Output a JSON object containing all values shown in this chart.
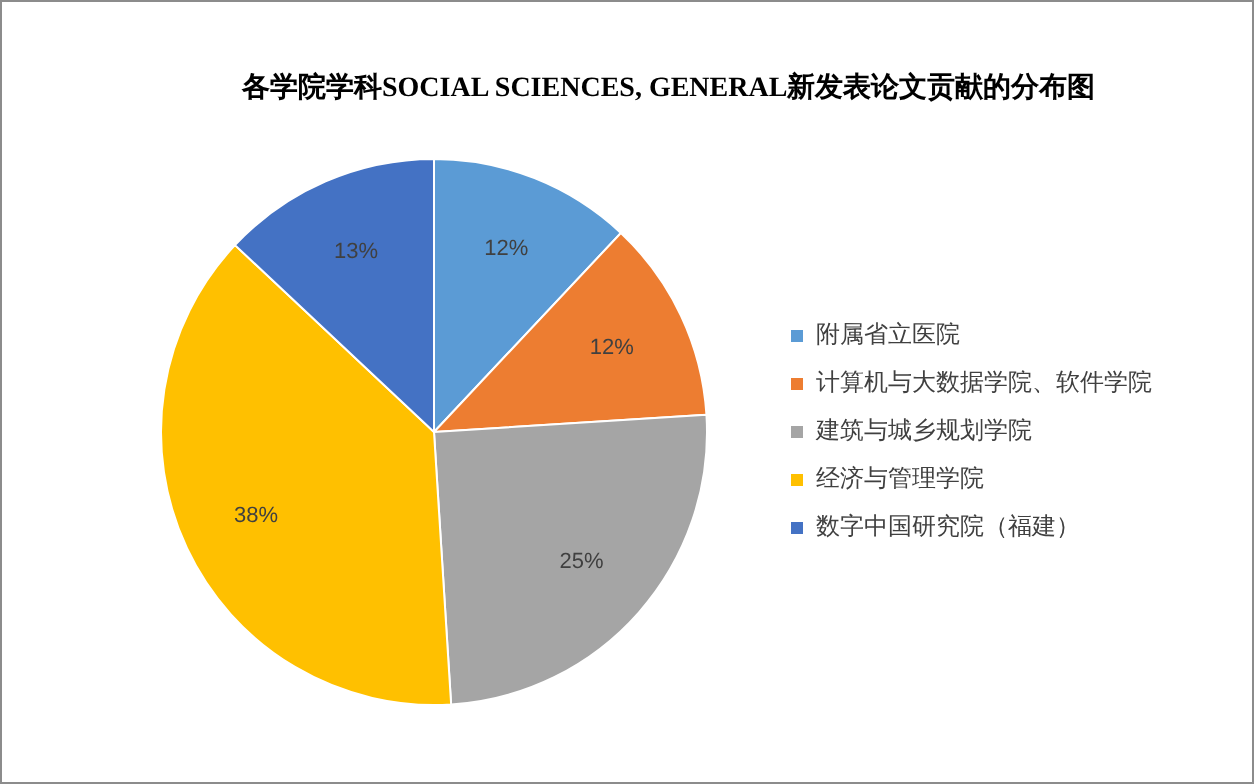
{
  "chart_data": {
    "type": "pie",
    "title": "各学院学科SOCIAL SCIENCES, GENERAL新发表论文贡献的分布图",
    "categories": [
      "附属省立医院",
      "计算机与大数据学院、软件学院",
      "建筑与城乡规划学院",
      "经济与管理学院",
      "数字中国研究院（福建）"
    ],
    "values": [
      12,
      12,
      25,
      38,
      13
    ],
    "value_labels": [
      "12%",
      "12%",
      "25%",
      "38%",
      "13%"
    ],
    "colors": [
      "#5b9bd5",
      "#ed7d31",
      "#a5a5a5",
      "#ffc000",
      "#4472c4"
    ],
    "legend": "right"
  }
}
